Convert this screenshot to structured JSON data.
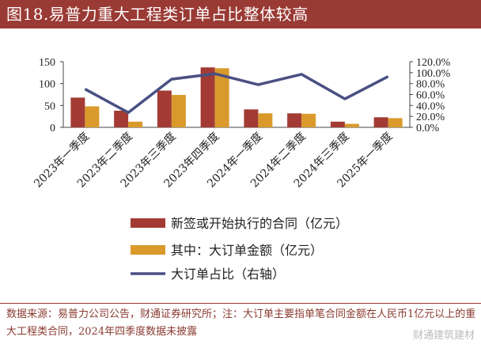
{
  "title": "图18.易普力重大工程类订单占比整体较高",
  "chart_data": {
    "type": "bar",
    "categories": [
      "2023年一季度",
      "2023年二季度",
      "2023年三季度",
      "2023年四季度",
      "2024年一季度",
      "2024年二季度",
      "2024年三季度",
      "2025年一季度"
    ],
    "series": [
      {
        "name": "新签或开始执行的合同（亿元）",
        "kind": "bar",
        "axis": "left",
        "color": "#a33b34",
        "values": [
          68,
          38,
          84,
          137,
          41,
          32,
          13,
          23
        ]
      },
      {
        "name": "其中：大订单金额（亿元）",
        "kind": "bar",
        "axis": "left",
        "color": "#d99a2b",
        "values": [
          48,
          13,
          74,
          135,
          32,
          31,
          8,
          21
        ]
      },
      {
        "name": "大订单占比（右轴）",
        "kind": "line",
        "axis": "right",
        "color": "#4a5083",
        "values": [
          0.7,
          0.27,
          0.88,
          0.98,
          0.78,
          0.97,
          0.52,
          0.93
        ]
      }
    ],
    "ylim": [
      0,
      150
    ],
    "yticks": [
      "0",
      "50",
      "100",
      "150"
    ],
    "y2lim": [
      0,
      1.2
    ],
    "y2ticks": [
      "0.0%",
      "20.0%",
      "40.0%",
      "60.0%",
      "80.0%",
      "100.0%",
      "120.0%"
    ],
    "legend": "bottom"
  },
  "source_note": "数据来源：易普力公司公告，财通证券研究所；注：大订单主要指单笔合同金额在人民币1亿元以上的重大工程类合同，2024年四季度数据未披露",
  "watermark": "财通建筑建材"
}
